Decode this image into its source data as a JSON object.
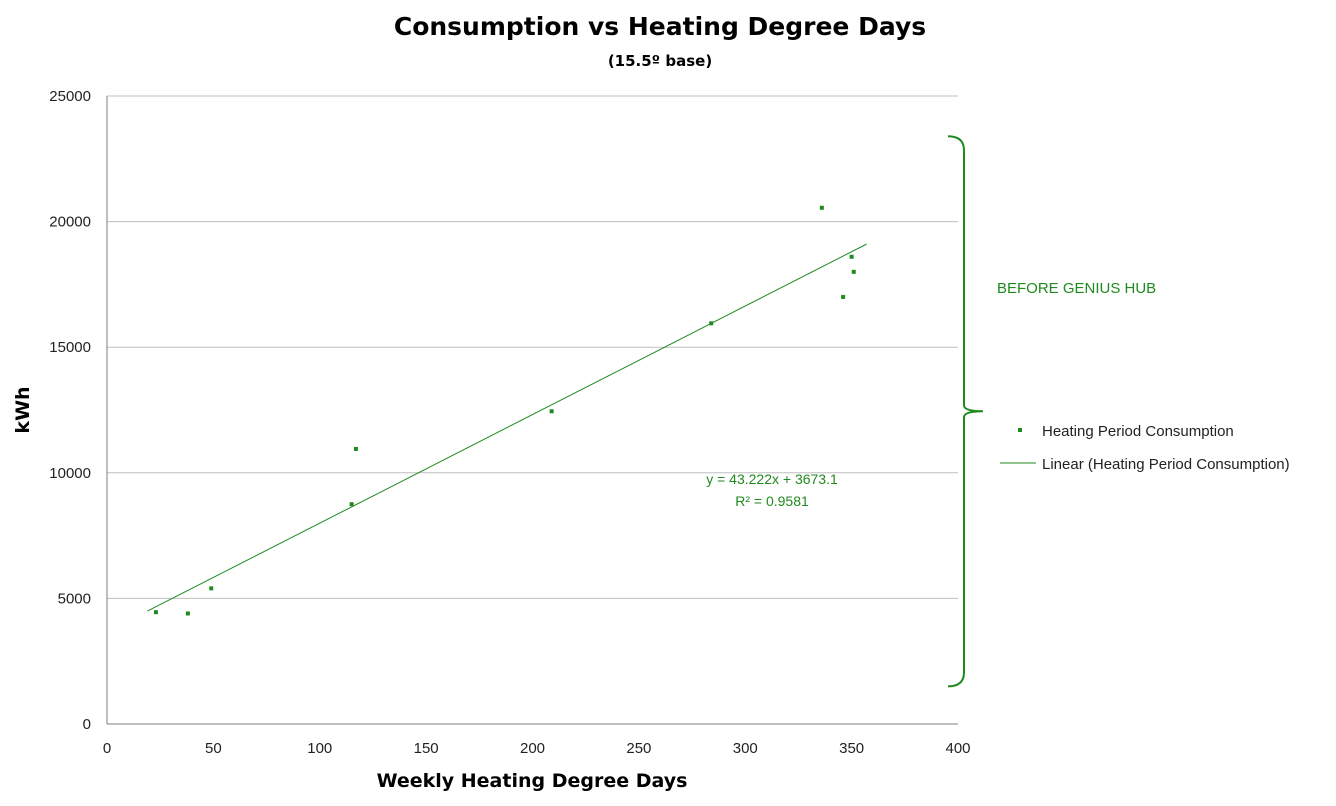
{
  "chart_data": {
    "type": "scatter",
    "title": "Consumption vs Heating Degree Days",
    "subtitle": "(15.5º base)",
    "xlabel": "Weekly Heating Degree Days",
    "ylabel": "kWh",
    "xlim": [
      0,
      400
    ],
    "ylim": [
      0,
      25000
    ],
    "xticks": [
      "0",
      "50",
      "100",
      "150",
      "200",
      "250",
      "300",
      "350",
      "400"
    ],
    "yticks": [
      "0",
      "5000",
      "10000",
      "15000",
      "20000",
      "25000"
    ],
    "grid": "horizontal",
    "legend_position": "right",
    "colors": {
      "series": "#1f8a1f",
      "axis": "#7f7f7f",
      "grid": "#bfbfbf"
    },
    "series": [
      {
        "name": "Heating Period Consumption",
        "kind": "scatter",
        "points": [
          [
            23,
            4450
          ],
          [
            38,
            4400
          ],
          [
            49,
            5400
          ],
          [
            115,
            8750
          ],
          [
            117,
            10950
          ],
          [
            209,
            12450
          ],
          [
            284,
            15950
          ],
          [
            336,
            20550
          ],
          [
            346,
            17000
          ],
          [
            350,
            18600
          ],
          [
            351,
            18000
          ]
        ]
      },
      {
        "name": "Linear (Heating Period Consumption)",
        "kind": "trendline",
        "slope": 43.222,
        "intercept": 3673.1,
        "x_range": [
          19,
          357
        ]
      }
    ],
    "annotations": {
      "equation": "y = 43.222x + 3673.1",
      "r2": "R² = 0.9581",
      "bracket_label": "BEFORE GENIUS HUB",
      "bracket_range": [
        1500,
        23400
      ]
    }
  }
}
